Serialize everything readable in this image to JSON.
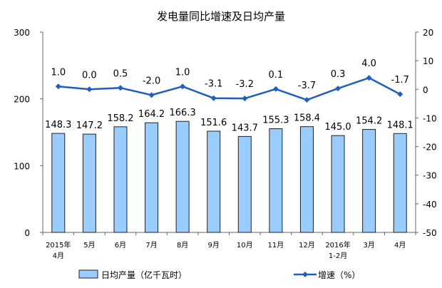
{
  "chart_data": {
    "type": "bar+line",
    "title": "发电量同比增速及日均产量",
    "categories": [
      "2015年\n4月",
      "5月",
      "6月",
      "7月",
      "8月",
      "9月",
      "10月",
      "11月",
      "12月",
      "2016年\n1-2月",
      "3月",
      "4月"
    ],
    "series": [
      {
        "name": "日均产量（亿千瓦时）",
        "type": "bar",
        "axis": "left",
        "color": "#99CCFF",
        "values": [
          148.3,
          147.2,
          158.2,
          164.2,
          166.3,
          151.6,
          143.7,
          155.3,
          158.4,
          145.0,
          154.2,
          148.1
        ]
      },
      {
        "name": "增速（%）",
        "type": "line",
        "axis": "right",
        "color": "#1F5FC0",
        "values": [
          1.0,
          0.0,
          0.5,
          -2.0,
          1.0,
          -3.1,
          -3.2,
          0.1,
          -3.7,
          0.3,
          4.0,
          -1.7
        ]
      }
    ],
    "y_left": {
      "range": [
        0,
        300
      ],
      "ticks": [
        0,
        100,
        200,
        300
      ]
    },
    "y_right": {
      "range": [
        -50,
        20
      ],
      "ticks": [
        20,
        10,
        0,
        -10,
        -20,
        -30,
        -40,
        -50
      ]
    },
    "grid": false,
    "legend": "bottom"
  }
}
